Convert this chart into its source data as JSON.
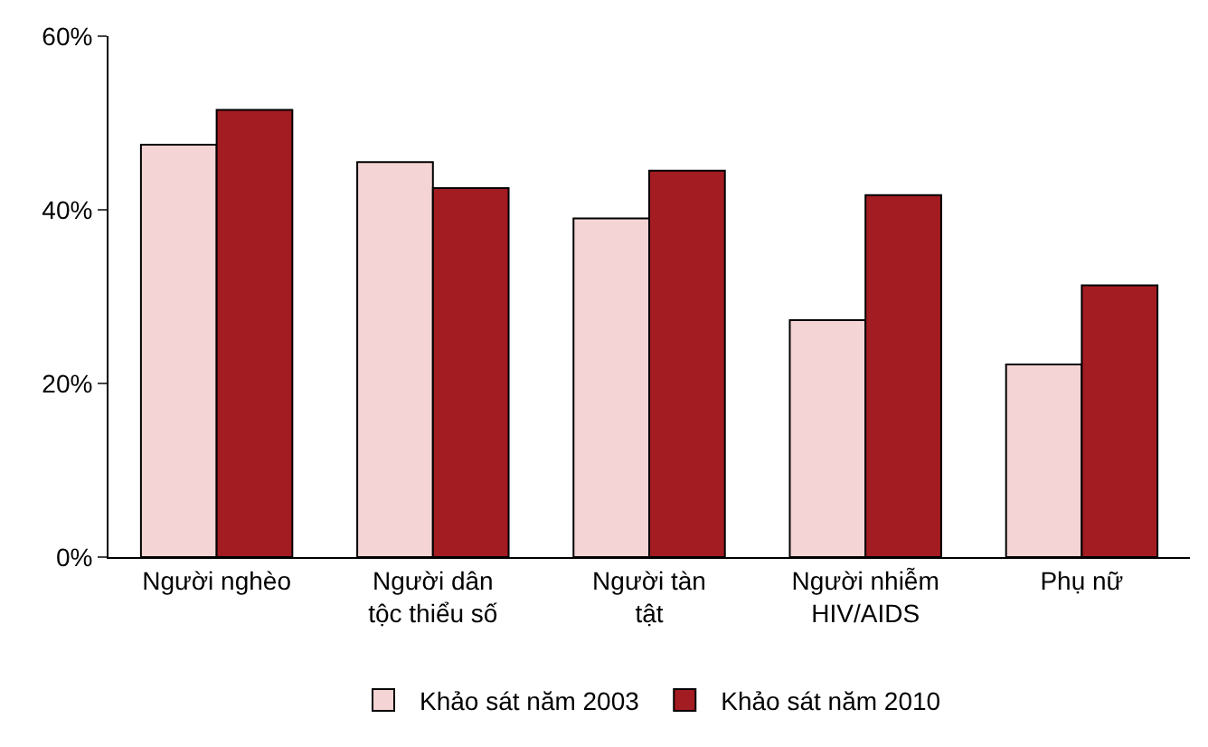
{
  "chart_data": {
    "type": "bar",
    "categories": [
      "Người nghèo",
      "Người dân tộc thiểu số",
      "Người tàn tật",
      "Người nhiễm HIV/AIDS",
      "Phụ nữ"
    ],
    "series": [
      {
        "name": "Khảo sát năm 2003",
        "color": "#f4d4d4",
        "values": [
          47.5,
          45.5,
          39,
          27.3,
          22.2
        ]
      },
      {
        "name": "Khảo sát năm 2010",
        "color": "#a31c22",
        "values": [
          51.5,
          42.5,
          44.5,
          41.7,
          31.3
        ]
      }
    ],
    "ylim": [
      0,
      60
    ],
    "yticks": [
      {
        "value": 0,
        "label": "0%"
      },
      {
        "value": 20,
        "label": "20%"
      },
      {
        "value": 40,
        "label": "40%"
      },
      {
        "value": 60,
        "label": "60%"
      }
    ],
    "grid": false,
    "legend": "bottom"
  }
}
